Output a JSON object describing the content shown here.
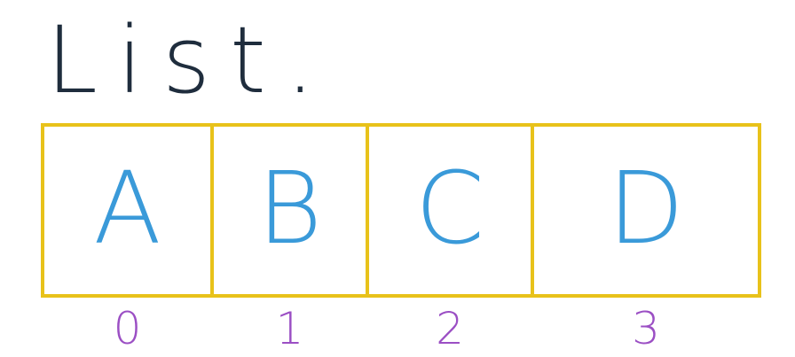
{
  "title": "List.",
  "cells": [
    {
      "value": "A",
      "index": "0"
    },
    {
      "value": "B",
      "index": "1"
    },
    {
      "value": "C",
      "index": "2"
    },
    {
      "value": "D",
      "index": "3"
    }
  ],
  "colors": {
    "title": "#1f2d3d",
    "box_border": "#e8c21a",
    "value_text": "#3a9ad9",
    "index_text": "#9b4fc4",
    "background": "#ffffff"
  }
}
